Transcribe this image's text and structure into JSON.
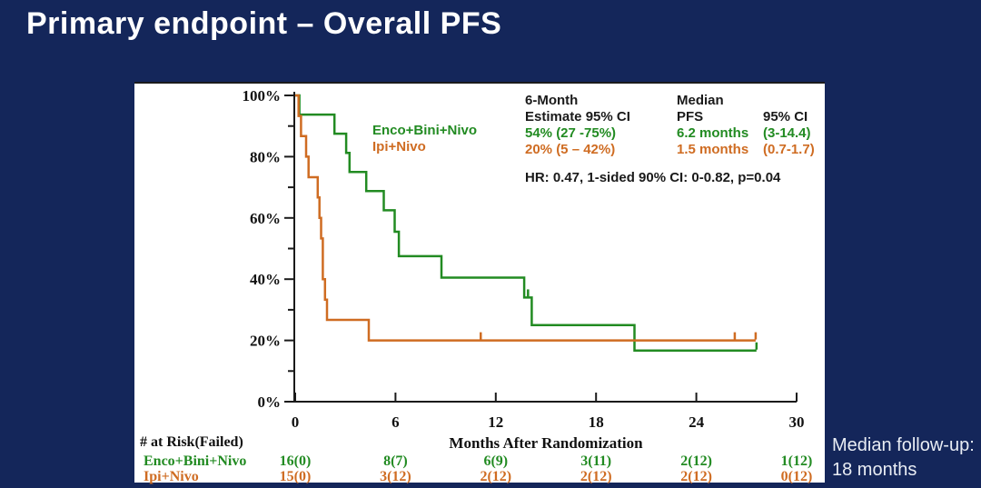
{
  "slide": {
    "title": "Primary endpoint – Overall PFS"
  },
  "followup": {
    "line1": "Median follow-up:",
    "line2": "18 months"
  },
  "stats": {
    "col1_header_line1": "6-Month",
    "col1_header_line2": "Estimate 95% CI",
    "col2_header_line1": "Median",
    "col2_header_line2": "PFS",
    "col3_header": "95% CI",
    "rows": [
      {
        "estimate": "54% (27 -75%)",
        "median": "6.2 months",
        "ci": "(3-14.4)"
      },
      {
        "estimate": "20% (5 – 42%)",
        "median": "1.5 months",
        "ci": "(0.7-1.7)"
      }
    ],
    "hr_line": "HR: 0.47, 1-sided 90% CI: 0-0.82, p=0.04"
  },
  "chart_data": {
    "type": "line",
    "subtype": "kaplan-meier-step",
    "xlabel": "Months After Randomization",
    "ylabel_format": "percent",
    "xlim": [
      0,
      30
    ],
    "ylim": [
      0,
      100
    ],
    "x_ticks": [
      0,
      6,
      12,
      18,
      24,
      30
    ],
    "y_major_ticks": [
      {
        "pct": 100,
        "label": "100%"
      },
      {
        "pct": 80,
        "label": "80%"
      },
      {
        "pct": 60,
        "label": "60%"
      },
      {
        "pct": 40,
        "label": "40%"
      },
      {
        "pct": 20,
        "label": "20%"
      },
      {
        "pct": 0,
        "label": "0%"
      }
    ],
    "y_minor_ticks": [
      90,
      70,
      50,
      30,
      10
    ],
    "series": [
      {
        "name": "Enco+Bini+Nivo",
        "color": "#228b22",
        "six_month_estimate": "54% (27 -75%)",
        "median_pfs": "6.2 months (3-14.4)",
        "steps": [
          [
            0,
            100
          ],
          [
            0.25,
            100
          ],
          [
            0.25,
            93.75
          ],
          [
            2.35,
            93.75
          ],
          [
            2.35,
            87.5
          ],
          [
            3.05,
            87.5
          ],
          [
            3.05,
            81.25
          ],
          [
            3.25,
            81.25
          ],
          [
            3.25,
            75
          ],
          [
            4.25,
            75
          ],
          [
            4.25,
            68.75
          ],
          [
            5.3,
            68.75
          ],
          [
            5.3,
            62.5
          ],
          [
            5.95,
            62.5
          ],
          [
            5.95,
            55.5
          ],
          [
            6.2,
            55.5
          ],
          [
            6.2,
            47.5
          ],
          [
            8.75,
            47.5
          ],
          [
            8.75,
            40.5
          ],
          [
            13.7,
            40.5
          ],
          [
            13.7,
            34
          ],
          [
            14.15,
            34
          ],
          [
            14.15,
            25
          ],
          [
            20.3,
            25
          ],
          [
            20.3,
            16.7
          ],
          [
            27.6,
            16.7
          ]
        ],
        "censor_marks": [
          [
            13.93,
            34
          ],
          [
            27.6,
            16.7
          ]
        ]
      },
      {
        "name": "Ipi+Nivo",
        "color": "#cf6c22",
        "six_month_estimate": "20% (5 – 42%)",
        "median_pfs": "1.5 months (0.7-1.7)",
        "steps": [
          [
            0,
            100
          ],
          [
            0.2,
            100
          ],
          [
            0.2,
            93.3
          ],
          [
            0.35,
            93.3
          ],
          [
            0.35,
            86.7
          ],
          [
            0.65,
            86.7
          ],
          [
            0.65,
            80
          ],
          [
            0.8,
            80
          ],
          [
            0.8,
            73.3
          ],
          [
            1.35,
            73.3
          ],
          [
            1.35,
            66.7
          ],
          [
            1.45,
            66.7
          ],
          [
            1.45,
            60
          ],
          [
            1.55,
            60
          ],
          [
            1.55,
            53.3
          ],
          [
            1.65,
            53.3
          ],
          [
            1.65,
            40
          ],
          [
            1.78,
            40
          ],
          [
            1.78,
            33.3
          ],
          [
            1.9,
            33.3
          ],
          [
            1.9,
            26.7
          ],
          [
            4.4,
            26.7
          ],
          [
            4.4,
            20
          ],
          [
            27.55,
            20
          ]
        ],
        "censor_marks": [
          [
            11.1,
            20
          ],
          [
            26.3,
            20
          ],
          [
            27.55,
            20
          ]
        ]
      }
    ]
  },
  "risk_table": {
    "header": "# at Risk(Failed)",
    "rows": [
      {
        "label": "Enco+Bini+Nivo",
        "values": [
          "16(0)",
          "8(7)",
          "6(9)",
          "3(11)",
          "2(12)",
          "1(12)"
        ]
      },
      {
        "label": "Ipi+Nivo",
        "values": [
          "15(0)",
          "3(12)",
          "2(12)",
          "2(12)",
          "2(12)",
          "0(12)"
        ]
      }
    ]
  }
}
